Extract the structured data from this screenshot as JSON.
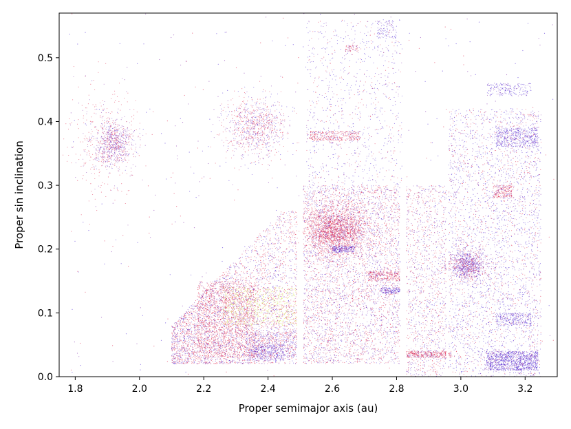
{
  "chart_data": {
    "type": "scatter",
    "title": "",
    "xlabel": "Proper semimajor axis (au)",
    "ylabel": "Proper sin inclination",
    "xlim": [
      1.75,
      3.3
    ],
    "ylim": [
      0.0,
      0.57
    ],
    "xticks": [
      1.8,
      2.0,
      2.2,
      2.4,
      2.6,
      2.8,
      3.0,
      3.2
    ],
    "xtick_labels": [
      "1.8",
      "2.0",
      "2.2",
      "2.4",
      "2.6",
      "2.8",
      "3.0",
      "3.2"
    ],
    "yticks": [
      0.0,
      0.1,
      0.2,
      0.3,
      0.4,
      0.5
    ],
    "ytick_labels": [
      "0.0",
      "0.1",
      "0.2",
      "0.3",
      "0.4",
      "0.5"
    ],
    "grid": false,
    "legend": "none",
    "colors": {
      "red": "#dc143c",
      "blue": "#3a0fd0",
      "purple": "#7a1fa8",
      "yellow": "#c8e020",
      "axis": "#000000"
    },
    "regions": [
      {
        "x": [
          2.1,
          2.49
        ],
        "y": [
          0.02,
          0.26
        ],
        "n": 3800,
        "shape": "triangle",
        "palette": "mix_red"
      },
      {
        "x": [
          2.18,
          2.36
        ],
        "y": [
          0.03,
          0.15
        ],
        "n": 1500,
        "shape": "rect",
        "palette": "red"
      },
      {
        "x": [
          2.26,
          2.49
        ],
        "y": [
          0.08,
          0.14
        ],
        "n": 700,
        "shape": "rect",
        "palette": "yellow"
      },
      {
        "x": [
          2.33,
          2.49
        ],
        "y": [
          0.03,
          0.07
        ],
        "n": 500,
        "shape": "rect",
        "palette": "blue_red"
      },
      {
        "x": [
          2.34,
          2.45
        ],
        "y": [
          0.025,
          0.05
        ],
        "n": 250,
        "shape": "rect",
        "palette": "blue"
      },
      {
        "x": [
          2.26,
          2.46
        ],
        "y": [
          0.34,
          0.44
        ],
        "n": 900,
        "shape": "ellipse",
        "palette": "mix_red"
      },
      {
        "x": [
          2.51,
          2.81
        ],
        "y": [
          0.02,
          0.3
        ],
        "n": 4200,
        "shape": "rect",
        "palette": "mix"
      },
      {
        "x": [
          2.51,
          2.71
        ],
        "y": [
          0.19,
          0.27
        ],
        "n": 2200,
        "shape": "ellipse",
        "palette": "red"
      },
      {
        "x": [
          2.52,
          2.82
        ],
        "y": [
          0.3,
          0.56
        ],
        "n": 900,
        "shape": "rect",
        "palette": "blue_mix"
      },
      {
        "x": [
          2.53,
          2.69
        ],
        "y": [
          0.37,
          0.385
        ],
        "n": 350,
        "shape": "rect",
        "palette": "red"
      },
      {
        "x": [
          2.6,
          2.67
        ],
        "y": [
          0.195,
          0.205
        ],
        "n": 200,
        "shape": "rect",
        "palette": "blue"
      },
      {
        "x": [
          2.71,
          2.81
        ],
        "y": [
          0.15,
          0.165
        ],
        "n": 250,
        "shape": "rect",
        "palette": "red"
      },
      {
        "x": [
          2.75,
          2.81
        ],
        "y": [
          0.13,
          0.14
        ],
        "n": 150,
        "shape": "rect",
        "palette": "blue"
      },
      {
        "x": [
          2.83,
          2.96
        ],
        "y": [
          0.0,
          0.3
        ],
        "n": 1400,
        "shape": "rect",
        "palette": "mix"
      },
      {
        "x": [
          2.83,
          2.97
        ],
        "y": [
          0.03,
          0.04
        ],
        "n": 350,
        "shape": "rect",
        "palette": "red"
      },
      {
        "x": [
          2.96,
          3.25
        ],
        "y": [
          0.0,
          0.42
        ],
        "n": 3600,
        "shape": "rect",
        "palette": "blue_mix"
      },
      {
        "x": [
          2.96,
          3.08
        ],
        "y": [
          0.15,
          0.2
        ],
        "n": 900,
        "shape": "ellipse",
        "palette": "purple"
      },
      {
        "x": [
          3.08,
          3.24
        ],
        "y": [
          0.01,
          0.04
        ],
        "n": 1000,
        "shape": "rect",
        "palette": "blue"
      },
      {
        "x": [
          3.11,
          3.24
        ],
        "y": [
          0.36,
          0.39
        ],
        "n": 450,
        "shape": "rect",
        "palette": "blue"
      },
      {
        "x": [
          3.08,
          3.22
        ],
        "y": [
          0.44,
          0.46
        ],
        "n": 200,
        "shape": "rect",
        "palette": "blue"
      },
      {
        "x": [
          3.1,
          3.16
        ],
        "y": [
          0.28,
          0.3
        ],
        "n": 200,
        "shape": "rect",
        "palette": "red"
      },
      {
        "x": [
          3.11,
          3.22
        ],
        "y": [
          0.08,
          0.1
        ],
        "n": 250,
        "shape": "rect",
        "palette": "blue"
      },
      {
        "x": [
          1.86,
          1.98
        ],
        "y": [
          0.33,
          0.4
        ],
        "n": 700,
        "shape": "ellipse",
        "palette": "purple"
      },
      {
        "x": [
          1.78,
          2.0
        ],
        "y": [
          0.28,
          0.46
        ],
        "n": 350,
        "shape": "ellipse",
        "palette": "red"
      },
      {
        "x": [
          2.64,
          2.68
        ],
        "y": [
          0.51,
          0.52
        ],
        "n": 60,
        "shape": "rect",
        "palette": "red"
      },
      {
        "x": [
          2.74,
          2.8
        ],
        "y": [
          0.53,
          0.56
        ],
        "n": 100,
        "shape": "rect",
        "palette": "blue"
      },
      {
        "x": [
          1.78,
          3.29
        ],
        "y": [
          0.0,
          0.57
        ],
        "n": 500,
        "shape": "rect",
        "palette": "sparse"
      }
    ],
    "gaps": [
      {
        "x": [
          2.497,
          2.508
        ]
      },
      {
        "x": [
          2.818,
          2.83
        ]
      },
      {
        "x": [
          2.955,
          2.962
        ]
      }
    ]
  }
}
